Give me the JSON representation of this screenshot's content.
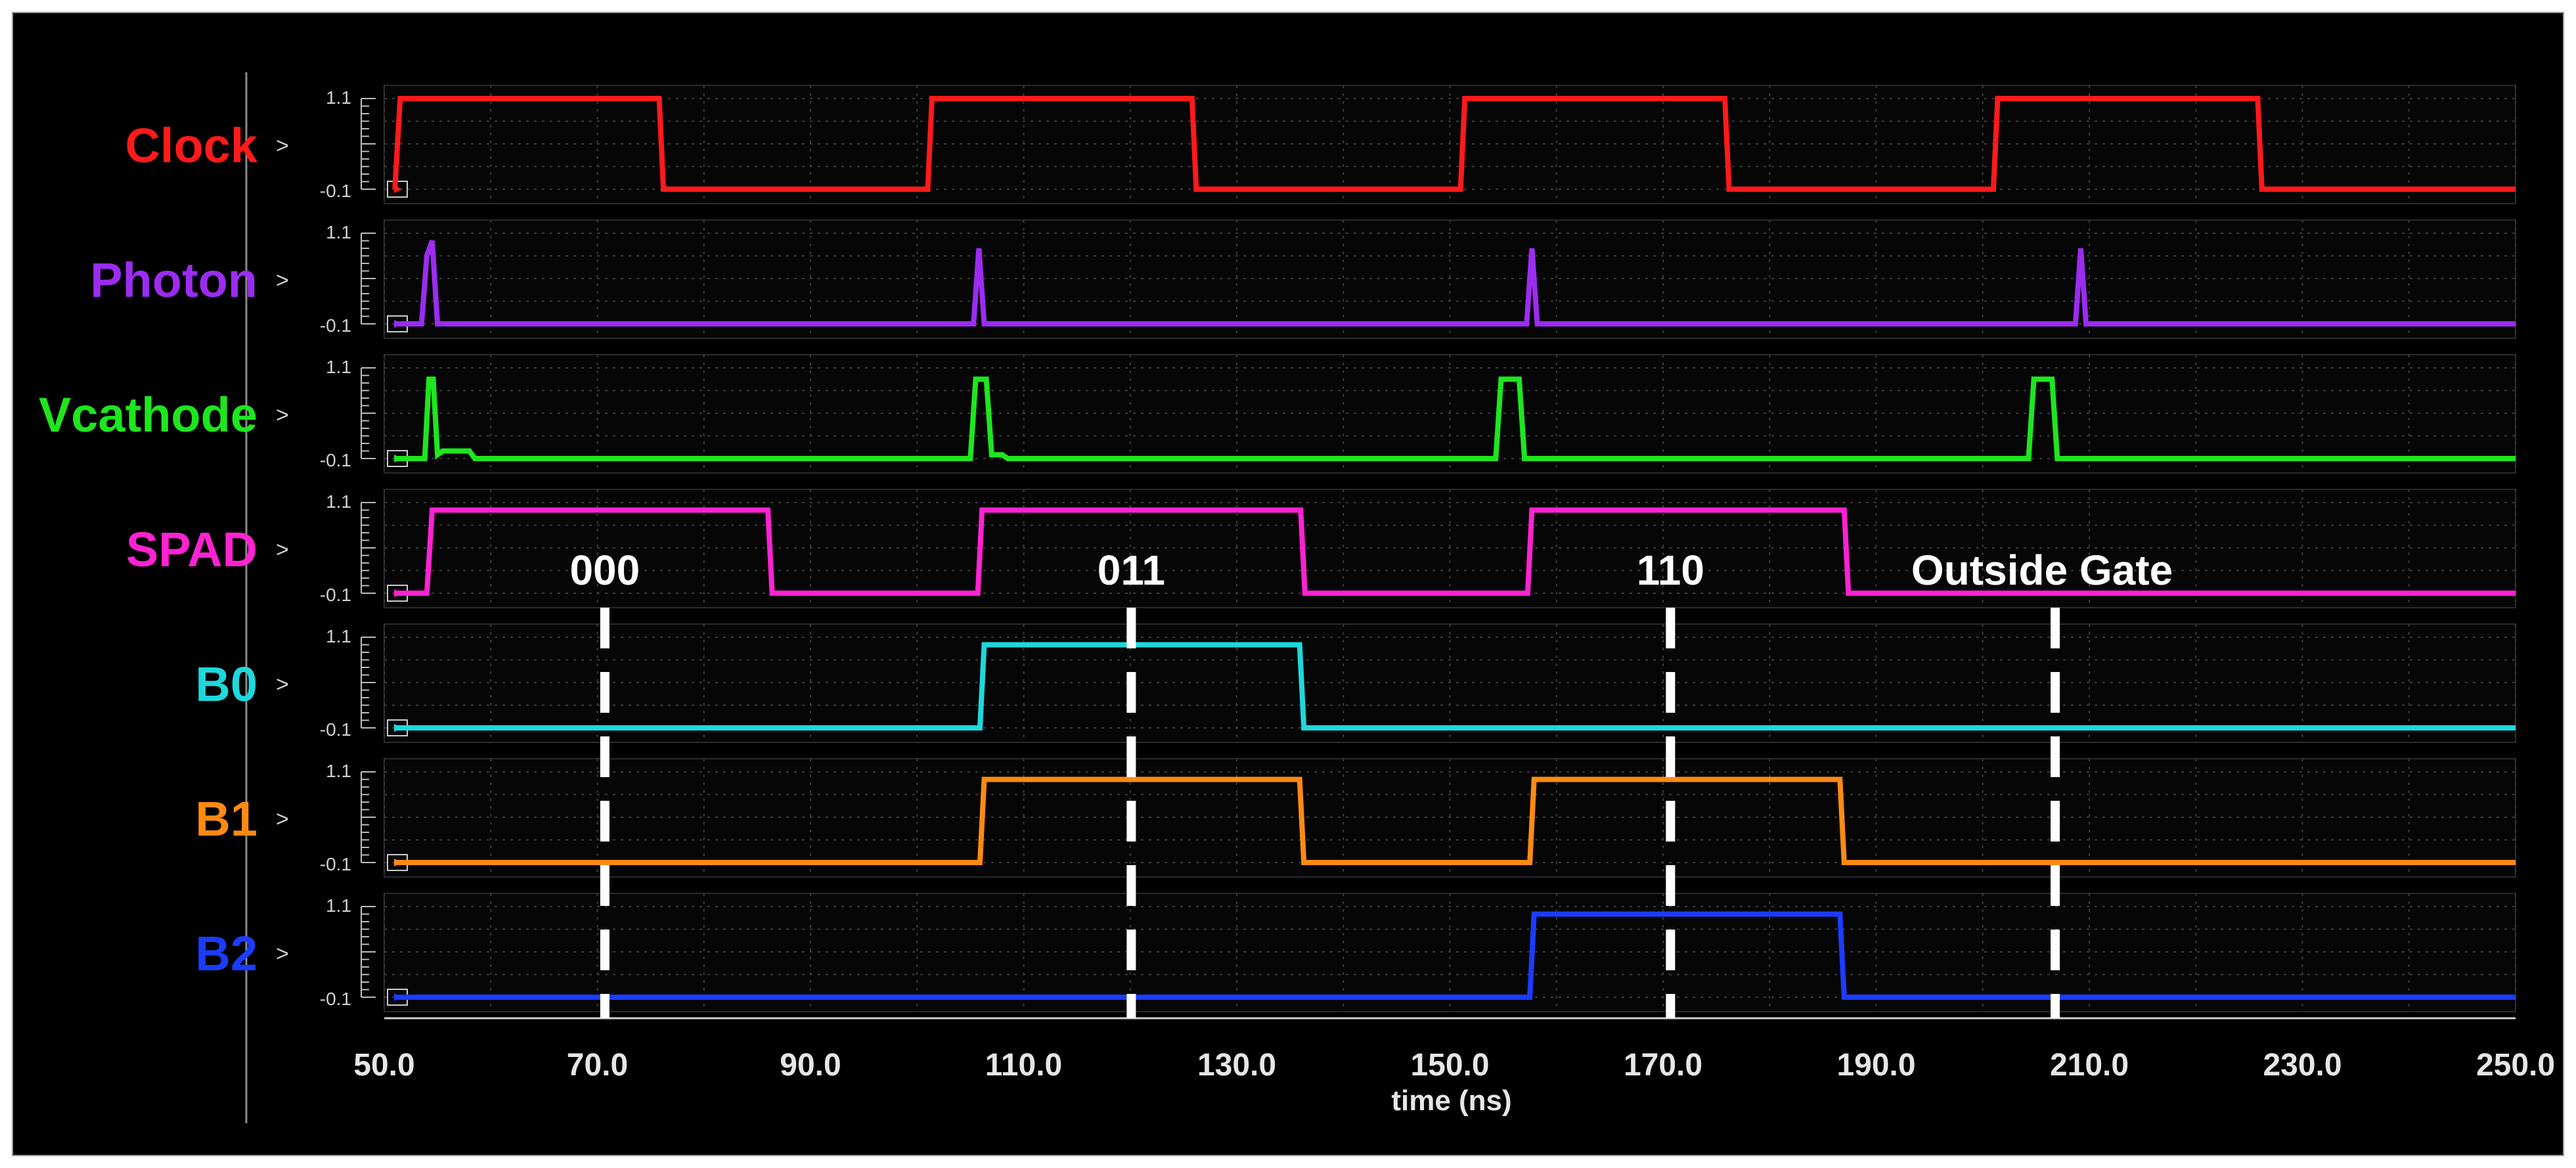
{
  "chart_data": {
    "type": "line",
    "title": "",
    "xlabel": "time (ns)",
    "ylabel": "",
    "xlim": [
      50,
      250
    ],
    "ylim": [
      -0.1,
      1.1
    ],
    "x_ticks": [
      "50.0",
      "70.0",
      "90.0",
      "110.0",
      "130.0",
      "150.0",
      "170.0",
      "190.0",
      "210.0",
      "230.0",
      "250.0"
    ],
    "y_tick_top": "1.1",
    "y_tick_bottom": "-0.1",
    "y_unit_marker": ">",
    "grid": true,
    "legend": "left",
    "series": [
      {
        "name": "Clock",
        "color": "#ff1a1a",
        "x": [
          51.0,
          51.5,
          75.8,
          76.2,
          101.0,
          101.4,
          125.8,
          126.2,
          151.0,
          151.4,
          175.8,
          176.2,
          201.0,
          201.4,
          225.8,
          226.2,
          250.0
        ],
        "y": [
          -0.1,
          1.1,
          1.1,
          -0.1,
          -0.1,
          1.1,
          1.1,
          -0.1,
          -0.1,
          1.1,
          1.1,
          -0.1,
          -0.1,
          1.1,
          1.1,
          -0.1,
          -0.1
        ]
      },
      {
        "name": "Photon",
        "color": "#9b2cf0",
        "x": [
          51.0,
          53.5,
          54.0,
          54.5,
          55.0,
          105.3,
          105.8,
          106.3,
          157.2,
          157.7,
          158.2,
          208.7,
          209.2,
          209.7,
          250.0
        ],
        "y": [
          -0.1,
          -0.1,
          0.8,
          1.0,
          -0.1,
          -0.1,
          0.9,
          -0.1,
          -0.1,
          0.9,
          -0.1,
          -0.1,
          0.9,
          -0.1,
          -0.1
        ]
      },
      {
        "name": "Vcathode",
        "color": "#1ee61e",
        "x": [
          51.0,
          53.8,
          54.2,
          54.6,
          55.0,
          55.5,
          58.0,
          58.5,
          105.0,
          105.5,
          106.5,
          107.0,
          108.0,
          108.5,
          154.3,
          154.8,
          156.5,
          157.0,
          204.3,
          204.8,
          206.5,
          207.0,
          250.0
        ],
        "y": [
          -0.1,
          -0.1,
          0.95,
          0.95,
          -0.05,
          0.0,
          0.0,
          -0.1,
          -0.1,
          0.95,
          0.95,
          -0.05,
          -0.05,
          -0.1,
          -0.1,
          0.95,
          0.95,
          -0.1,
          -0.1,
          0.95,
          0.95,
          -0.1,
          -0.1
        ]
      },
      {
        "name": "SPAD",
        "color": "#ff22d2",
        "x": [
          51.0,
          54.0,
          54.5,
          86.0,
          86.4,
          105.7,
          106.1,
          136.0,
          136.4,
          157.3,
          157.7,
          187.0,
          187.4,
          250.0
        ],
        "y": [
          -0.1,
          -0.1,
          1.0,
          1.0,
          -0.1,
          -0.1,
          1.0,
          1.0,
          -0.1,
          -0.1,
          1.0,
          1.0,
          -0.1,
          -0.1
        ]
      },
      {
        "name": "B0",
        "color": "#1ed8dc",
        "x": [
          51.0,
          105.9,
          106.3,
          135.9,
          136.3,
          250.0
        ],
        "y": [
          -0.1,
          -0.1,
          1.0,
          1.0,
          -0.1,
          -0.1
        ]
      },
      {
        "name": "B1",
        "color": "#ff8a12",
        "x": [
          51.0,
          105.9,
          106.3,
          135.9,
          136.3,
          157.5,
          157.9,
          186.6,
          187.0,
          250.0
        ],
        "y": [
          -0.1,
          -0.1,
          1.0,
          1.0,
          -0.1,
          -0.1,
          1.0,
          1.0,
          -0.1,
          -0.1
        ]
      },
      {
        "name": "B2",
        "color": "#1a3cff",
        "x": [
          51.0,
          157.5,
          157.9,
          186.6,
          187.0,
          250.0
        ],
        "y": [
          -0.1,
          -0.1,
          1.0,
          1.0,
          -0.1,
          -0.1
        ]
      }
    ],
    "annotations": [
      {
        "text": "000",
        "x": 70.7
      },
      {
        "text": "011",
        "x": 120.1
      },
      {
        "text": "110",
        "x": 170.7
      },
      {
        "text": "Outside Gate",
        "x": 206.8
      }
    ]
  }
}
